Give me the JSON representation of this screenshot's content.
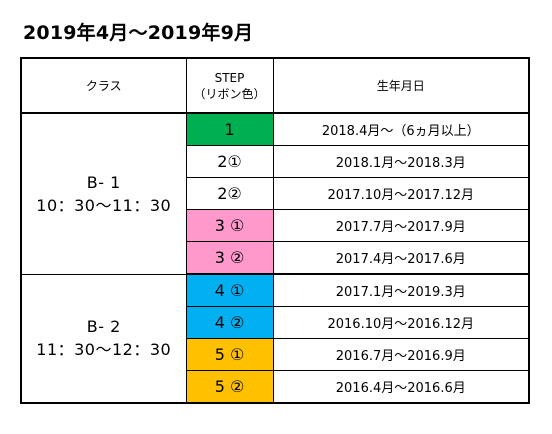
{
  "title": "2019年4月～2019年9月",
  "headers": {
    "class": "クラス",
    "step_line1": "STEP",
    "step_line2": "（リボン色）",
    "birth": "生年月日"
  },
  "colors": {
    "green": "#00b050",
    "white": "#ffffff",
    "pink": "#ff99cc",
    "blue": "#00b0f0",
    "orange": "#ffc000"
  },
  "groups": [
    {
      "class_name": "B- 1",
      "class_time": "10：30～11：30",
      "rows": [
        {
          "step": "1",
          "ribbon": "green",
          "birth": "2018.4月～（6ヵ月以上）"
        },
        {
          "step": "2①",
          "ribbon": "white",
          "birth": "2018.1月～2018.3月"
        },
        {
          "step": "2②",
          "ribbon": "white",
          "birth": "2017.10月～2017.12月"
        },
        {
          "step": "3 ①",
          "ribbon": "pink",
          "birth": "2017.7月～2017.9月"
        },
        {
          "step": "3 ②",
          "ribbon": "pink",
          "birth": "2017.4月～2017.6月"
        }
      ]
    },
    {
      "class_name": "B- 2",
      "class_time": "11：30～12：30",
      "rows": [
        {
          "step": "4 ①",
          "ribbon": "blue",
          "birth": "2017.1月～2019.3月"
        },
        {
          "step": "4 ②",
          "ribbon": "blue",
          "birth": "2016.10月～2016.12月"
        },
        {
          "step": "5 ①",
          "ribbon": "orange",
          "birth": "2016.7月～2016.9月"
        },
        {
          "step": "5 ②",
          "ribbon": "orange",
          "birth": "2016.4月～2016.6月"
        }
      ]
    }
  ]
}
